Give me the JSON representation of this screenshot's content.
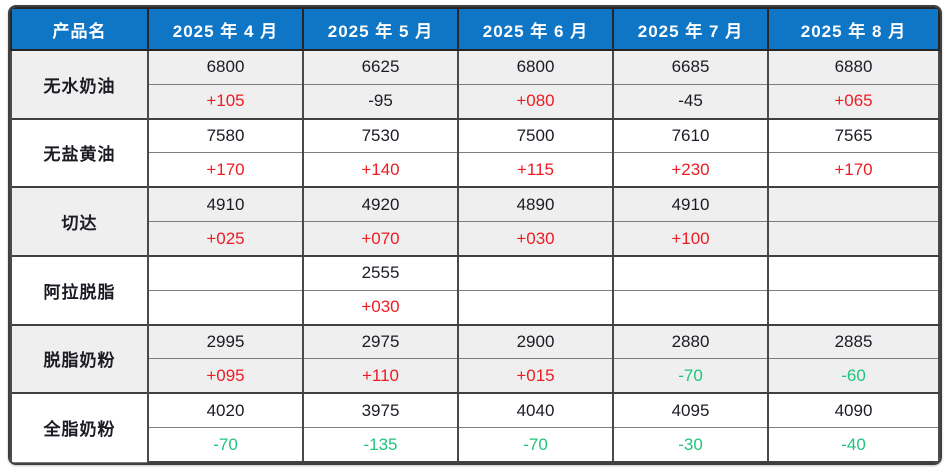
{
  "colors": {
    "header_bg": "#0f76c6",
    "header_text": "#ffffff",
    "positive_red": "#ed1c24",
    "negative_green": "#1fc57d",
    "neutral_dark": "#1b1b24",
    "shaded_row_bg": "#efefef",
    "border": "#404040"
  },
  "chart_data": {
    "type": "table",
    "title": "",
    "columns": [
      "产品名",
      "2025 年 4 月",
      "2025 年 5 月",
      "2025 年 6 月",
      "2025 年 7 月",
      "2025 年 8 月"
    ],
    "rows": [
      {
        "product": "无水奶油",
        "shaded": true,
        "prices": [
          "6800",
          "6625",
          "6800",
          "6685",
          "6880"
        ],
        "changes": [
          {
            "t": "+105",
            "c": "red"
          },
          {
            "t": "-95",
            "c": "dark"
          },
          {
            "t": "+080",
            "c": "red"
          },
          {
            "t": "-45",
            "c": "dark"
          },
          {
            "t": "+065",
            "c": "red"
          }
        ]
      },
      {
        "product": "无盐黄油",
        "shaded": false,
        "prices": [
          "7580",
          "7530",
          "7500",
          "7610",
          "7565"
        ],
        "changes": [
          {
            "t": "+170",
            "c": "red"
          },
          {
            "t": "+140",
            "c": "red"
          },
          {
            "t": "+115",
            "c": "red"
          },
          {
            "t": "+230",
            "c": "red"
          },
          {
            "t": "+170",
            "c": "red"
          }
        ]
      },
      {
        "product": "切达",
        "shaded": true,
        "prices": [
          "4910",
          "4920",
          "4890",
          "4910",
          ""
        ],
        "changes": [
          {
            "t": "+025",
            "c": "red"
          },
          {
            "t": "+070",
            "c": "red"
          },
          {
            "t": "+030",
            "c": "red"
          },
          {
            "t": "+100",
            "c": "red"
          },
          {
            "t": "",
            "c": "dark"
          }
        ]
      },
      {
        "product": "阿拉脱脂",
        "shaded": false,
        "prices": [
          "",
          "2555",
          "",
          "",
          ""
        ],
        "changes": [
          {
            "t": "",
            "c": "dark"
          },
          {
            "t": "+030",
            "c": "red"
          },
          {
            "t": "",
            "c": "dark"
          },
          {
            "t": "",
            "c": "dark"
          },
          {
            "t": "",
            "c": "dark"
          }
        ]
      },
      {
        "product": "脱脂奶粉",
        "shaded": true,
        "prices": [
          "2995",
          "2975",
          "2900",
          "2880",
          "2885"
        ],
        "changes": [
          {
            "t": "+095",
            "c": "red"
          },
          {
            "t": "+110",
            "c": "red"
          },
          {
            "t": "+015",
            "c": "red"
          },
          {
            "t": "-70",
            "c": "green"
          },
          {
            "t": "-60",
            "c": "green"
          }
        ]
      },
      {
        "product": "全脂奶粉",
        "shaded": false,
        "prices": [
          "4020",
          "3975",
          "4040",
          "4095",
          "4090"
        ],
        "changes": [
          {
            "t": "-70",
            "c": "green"
          },
          {
            "t": "-135",
            "c": "green"
          },
          {
            "t": "-70",
            "c": "green"
          },
          {
            "t": "-30",
            "c": "green"
          },
          {
            "t": "-40",
            "c": "green"
          }
        ]
      }
    ]
  }
}
